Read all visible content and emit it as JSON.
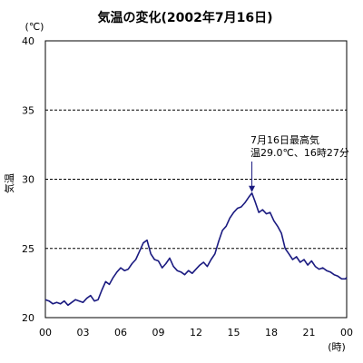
{
  "chart_data": {
    "type": "line",
    "title": "気温の変化(2002年7月16日)",
    "ylabel": "気温",
    "yunit": "(℃)",
    "xunit": "(時)",
    "ylim": [
      20,
      40
    ],
    "xlim": [
      0,
      24
    ],
    "yticks": [
      20,
      25,
      30,
      35,
      40
    ],
    "xtick_labels": [
      "00",
      "03",
      "06",
      "09",
      "12",
      "15",
      "18",
      "21",
      "00"
    ],
    "grid": "horizontal-dashed",
    "annotation": {
      "line1": "7月16日最高気",
      "line2": "温29.0℃、16時27分",
      "x": 16.45,
      "y": 29.0
    },
    "series": [
      {
        "color": "#1a1a80",
        "x": [
          0.0,
          0.3,
          0.6,
          0.9,
          1.2,
          1.5,
          1.8,
          2.1,
          2.4,
          2.7,
          3.0,
          3.3,
          3.6,
          3.9,
          4.2,
          4.5,
          4.8,
          5.1,
          5.4,
          5.7,
          6.0,
          6.3,
          6.6,
          6.9,
          7.2,
          7.5,
          7.8,
          8.1,
          8.4,
          8.7,
          9.0,
          9.3,
          9.6,
          9.9,
          10.2,
          10.5,
          10.8,
          11.1,
          11.4,
          11.7,
          12.0,
          12.3,
          12.6,
          12.9,
          13.2,
          13.5,
          13.8,
          14.1,
          14.4,
          14.7,
          15.0,
          15.3,
          15.6,
          15.9,
          16.2,
          16.45,
          16.7,
          17.0,
          17.3,
          17.6,
          17.9,
          18.2,
          18.5,
          18.8,
          19.1,
          19.4,
          19.7,
          20.0,
          20.3,
          20.6,
          20.9,
          21.2,
          21.5,
          21.8,
          22.1,
          22.4,
          22.7,
          23.0,
          23.3,
          23.6,
          23.9,
          24.0
        ],
        "values": [
          21.3,
          21.2,
          21.0,
          21.1,
          21.0,
          21.2,
          20.9,
          21.1,
          21.3,
          21.2,
          21.1,
          21.4,
          21.6,
          21.2,
          21.3,
          22.0,
          22.6,
          22.4,
          22.9,
          23.3,
          23.6,
          23.4,
          23.5,
          23.9,
          24.2,
          24.8,
          25.4,
          25.6,
          24.6,
          24.2,
          24.1,
          23.6,
          23.9,
          24.3,
          23.7,
          23.4,
          23.3,
          23.1,
          23.4,
          23.2,
          23.5,
          23.8,
          24.0,
          23.7,
          24.2,
          24.6,
          25.5,
          26.3,
          26.6,
          27.2,
          27.6,
          27.9,
          28.0,
          28.3,
          28.7,
          29.0,
          28.4,
          27.6,
          27.8,
          27.5,
          27.6,
          27.0,
          26.6,
          26.1,
          25.0,
          24.6,
          24.2,
          24.4,
          24.0,
          24.2,
          23.8,
          24.1,
          23.7,
          23.5,
          23.6,
          23.4,
          23.3,
          23.1,
          23.0,
          22.8,
          22.8,
          22.9
        ]
      }
    ]
  }
}
